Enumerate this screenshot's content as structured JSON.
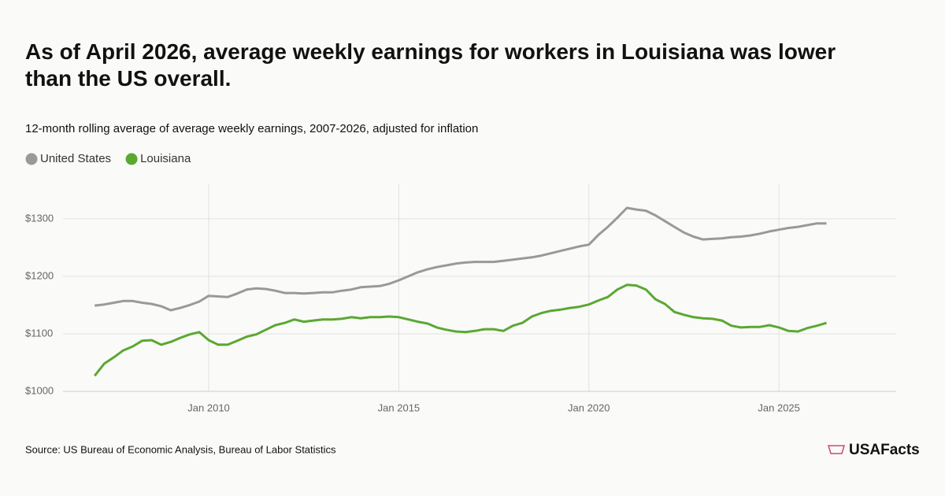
{
  "chart_data": {
    "type": "line",
    "title": "As of April 2026, average weekly earnings for workers in Louisiana was lower than the US overall.",
    "subtitle": "12-month rolling average of average weekly earnings, 2007-2026, adjusted for inflation",
    "source": "Source: US Bureau of Economic Analysis, Bureau of Labor Statistics",
    "brand": "USAFacts",
    "x": [
      "2007-01",
      "2007-04",
      "2007-07",
      "2007-10",
      "2008-01",
      "2008-04",
      "2008-07",
      "2008-10",
      "2009-01",
      "2009-04",
      "2009-07",
      "2009-10",
      "2010-01",
      "2010-04",
      "2010-07",
      "2010-10",
      "2011-01",
      "2011-04",
      "2011-07",
      "2011-10",
      "2012-01",
      "2012-04",
      "2012-07",
      "2012-10",
      "2013-01",
      "2013-04",
      "2013-07",
      "2013-10",
      "2014-01",
      "2014-04",
      "2014-07",
      "2014-10",
      "2015-01",
      "2015-04",
      "2015-07",
      "2015-10",
      "2016-01",
      "2016-04",
      "2016-07",
      "2016-10",
      "2017-01",
      "2017-04",
      "2017-07",
      "2017-10",
      "2018-01",
      "2018-04",
      "2018-07",
      "2018-10",
      "2019-01",
      "2019-04",
      "2019-07",
      "2019-10",
      "2020-01",
      "2020-04",
      "2020-07",
      "2020-10",
      "2021-01",
      "2021-04",
      "2021-07",
      "2021-10",
      "2022-01",
      "2022-04",
      "2022-07",
      "2022-10",
      "2023-01",
      "2023-04",
      "2023-07",
      "2023-10",
      "2024-01",
      "2024-04",
      "2024-07",
      "2024-10",
      "2025-01",
      "2025-04",
      "2025-07",
      "2025-10",
      "2026-01",
      "2026-04"
    ],
    "series": [
      {
        "name": "United States",
        "color": "#999999",
        "values": [
          1149,
          1151,
          1154,
          1157,
          1157,
          1154,
          1152,
          1148,
          1141,
          1145,
          1150,
          1156,
          1166,
          1165,
          1164,
          1170,
          1177,
          1179,
          1178,
          1175,
          1171,
          1171,
          1170,
          1171,
          1172,
          1172,
          1175,
          1177,
          1181,
          1182,
          1183,
          1187,
          1193,
          1200,
          1207,
          1212,
          1216,
          1219,
          1222,
          1224,
          1225,
          1225,
          1225,
          1227,
          1229,
          1231,
          1233,
          1236,
          1240,
          1244,
          1248,
          1252,
          1255,
          1272,
          1286,
          1302,
          1319,
          1316,
          1314,
          1306,
          1296,
          1286,
          1276,
          1269,
          1264,
          1265,
          1266,
          1268,
          1269,
          1271,
          1274,
          1278,
          1281,
          1284,
          1286,
          1289,
          1292,
          1292
        ]
      },
      {
        "name": "Louisiana",
        "color": "#5aa832",
        "values": [
          1027,
          1048,
          1059,
          1071,
          1078,
          1088,
          1089,
          1081,
          1086,
          1093,
          1099,
          1103,
          1089,
          1081,
          1081,
          1088,
          1095,
          1099,
          1107,
          1115,
          1119,
          1125,
          1121,
          1123,
          1125,
          1125,
          1126,
          1129,
          1127,
          1129,
          1129,
          1130,
          1129,
          1125,
          1121,
          1118,
          1111,
          1107,
          1104,
          1103,
          1105,
          1108,
          1108,
          1105,
          1114,
          1119,
          1130,
          1136,
          1140,
          1142,
          1145,
          1147,
          1151,
          1158,
          1164,
          1177,
          1185,
          1184,
          1177,
          1160,
          1152,
          1138,
          1133,
          1129,
          1127,
          1126,
          1123,
          1114,
          1111,
          1112,
          1112,
          1115,
          1111,
          1105,
          1104,
          1110,
          1114,
          1119
        ]
      }
    ],
    "xlim": [
      "2006-03",
      "2028-02"
    ],
    "xticks": [
      {
        "value": "2010-01",
        "label": "Jan 2010"
      },
      {
        "value": "2015-01",
        "label": "Jan 2015"
      },
      {
        "value": "2020-01",
        "label": "Jan 2020"
      },
      {
        "value": "2025-01",
        "label": "Jan 2025"
      }
    ],
    "ylim": [
      1000,
      1360
    ],
    "yticks": [
      {
        "value": 1000,
        "label": "$1000"
      },
      {
        "value": 1100,
        "label": "$1100"
      },
      {
        "value": 1200,
        "label": "$1200"
      },
      {
        "value": 1300,
        "label": "$1300"
      }
    ],
    "grid": true
  }
}
